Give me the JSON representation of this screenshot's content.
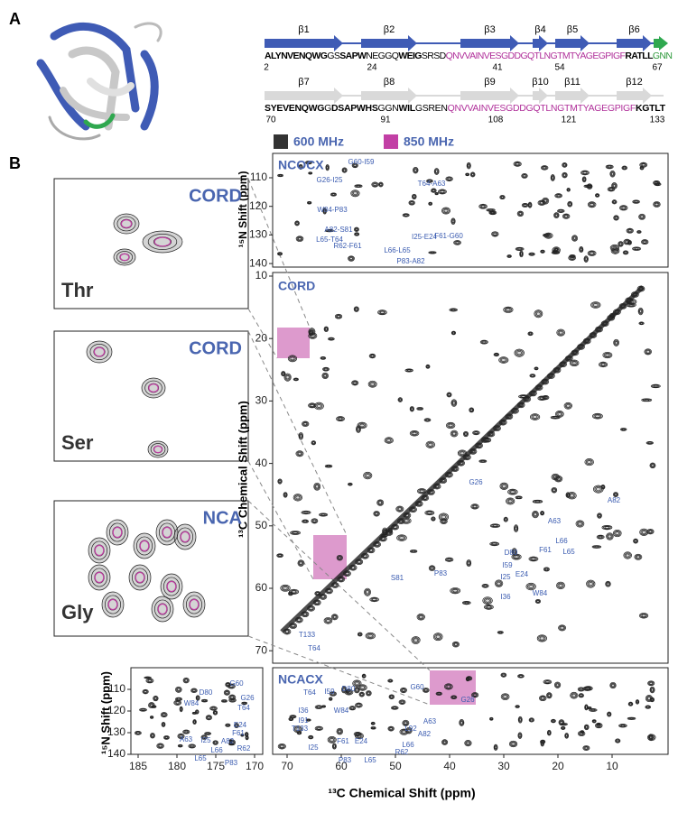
{
  "panel_labels": [
    "A",
    "B"
  ],
  "secondary_structure": [
    {
      "strands": [
        "β1",
        "β2",
        "β3",
        "β4",
        "β5",
        "β6"
      ],
      "sequence": [
        {
          "text": "ALYNVENQWG",
          "style": "bold"
        },
        {
          "text": "GS",
          "style": "normal"
        },
        {
          "text": "SAPW",
          "style": "bold"
        },
        {
          "text": "NEGGQ",
          "style": "normal"
        },
        {
          "text": "WEIG",
          "style": "bold"
        },
        {
          "text": "SRSD",
          "style": "normal"
        },
        {
          "text": "QNVVAINVESGDDGQTLNGTMTYAGEGPIGF",
          "style": "magenta"
        },
        {
          "text": "RATLL",
          "style": "bold"
        },
        {
          "text": "GNN",
          "style": "green"
        }
      ],
      "numbers": [
        2,
        24,
        41,
        54,
        67
      ]
    },
    {
      "strands": [
        "β7",
        "β8",
        "β9",
        "β10",
        "β11",
        "β12"
      ],
      "sequence": [
        {
          "text": "SYEVENQWG",
          "style": "bold"
        },
        {
          "text": "G",
          "style": "normal"
        },
        {
          "text": "DSAPWHS",
          "style": "bold"
        },
        {
          "text": "GGN",
          "style": "normal"
        },
        {
          "text": "WIL",
          "style": "bold"
        },
        {
          "text": "GSREN",
          "style": "normal"
        },
        {
          "text": "QNVVAINVESGDDGQTLNGTMTYAGEGPIGF",
          "style": "magenta"
        },
        {
          "text": "KGTLT",
          "style": "bold"
        }
      ],
      "numbers": [
        70,
        91,
        108,
        121,
        133
      ]
    }
  ],
  "legend": [
    {
      "label": "600 MHz",
      "color": "#333333"
    },
    {
      "label": "850 MHz",
      "color": "#c23fa5"
    }
  ],
  "insets": [
    {
      "method": "CORD",
      "residue": "Thr"
    },
    {
      "method": "CORD",
      "residue": "Ser"
    },
    {
      "method": "NCA",
      "residue": "Gly"
    }
  ],
  "axis_labels": {
    "n15": "¹⁵N Shift (ppm)",
    "c13": "¹³C Chemical Shift (ppm)"
  },
  "spectra": {
    "ncocx": {
      "title": "NCOCX",
      "yticks": [
        110,
        120,
        130,
        140
      ],
      "peaks": [
        "G60-I59",
        "G26-I25",
        "T64-A63",
        "W84-P83",
        "A82-S81",
        "I25-E24",
        "L65-T64",
        "F61-G60",
        "R62-F61",
        "L66-L65",
        "P83-A82"
      ]
    },
    "cord": {
      "title": "CORD",
      "yticks": [
        10,
        20,
        30,
        40,
        50,
        60,
        70
      ],
      "peaks": [
        "G26",
        "A82",
        "A63",
        "L66",
        "F61",
        "L65",
        "D80",
        "E24",
        "I59",
        "W84",
        "I25",
        "P83",
        "S81",
        "I36",
        "T133",
        "T64"
      ]
    },
    "ncacx": {
      "title": "NCACX",
      "xticks": [
        70,
        60,
        50,
        40,
        30,
        20,
        10
      ],
      "peaks": [
        "G60",
        "G26",
        "T64",
        "I59",
        "D80",
        "I36",
        "W84",
        "I91",
        "T133",
        "L92",
        "A63",
        "A82",
        "I25",
        "F61",
        "E24",
        "L66",
        "R62",
        "P83",
        "L65"
      ]
    },
    "carbonyl": {
      "xticks": [
        185,
        180,
        175,
        170
      ],
      "yticks": [
        110,
        120,
        130,
        140
      ],
      "peaks": [
        "G60",
        "D80",
        "W84",
        "G26",
        "T64",
        "E24",
        "F61",
        "A63",
        "I25",
        "A82",
        "L66",
        "R62",
        "L65",
        "P83"
      ]
    }
  }
}
